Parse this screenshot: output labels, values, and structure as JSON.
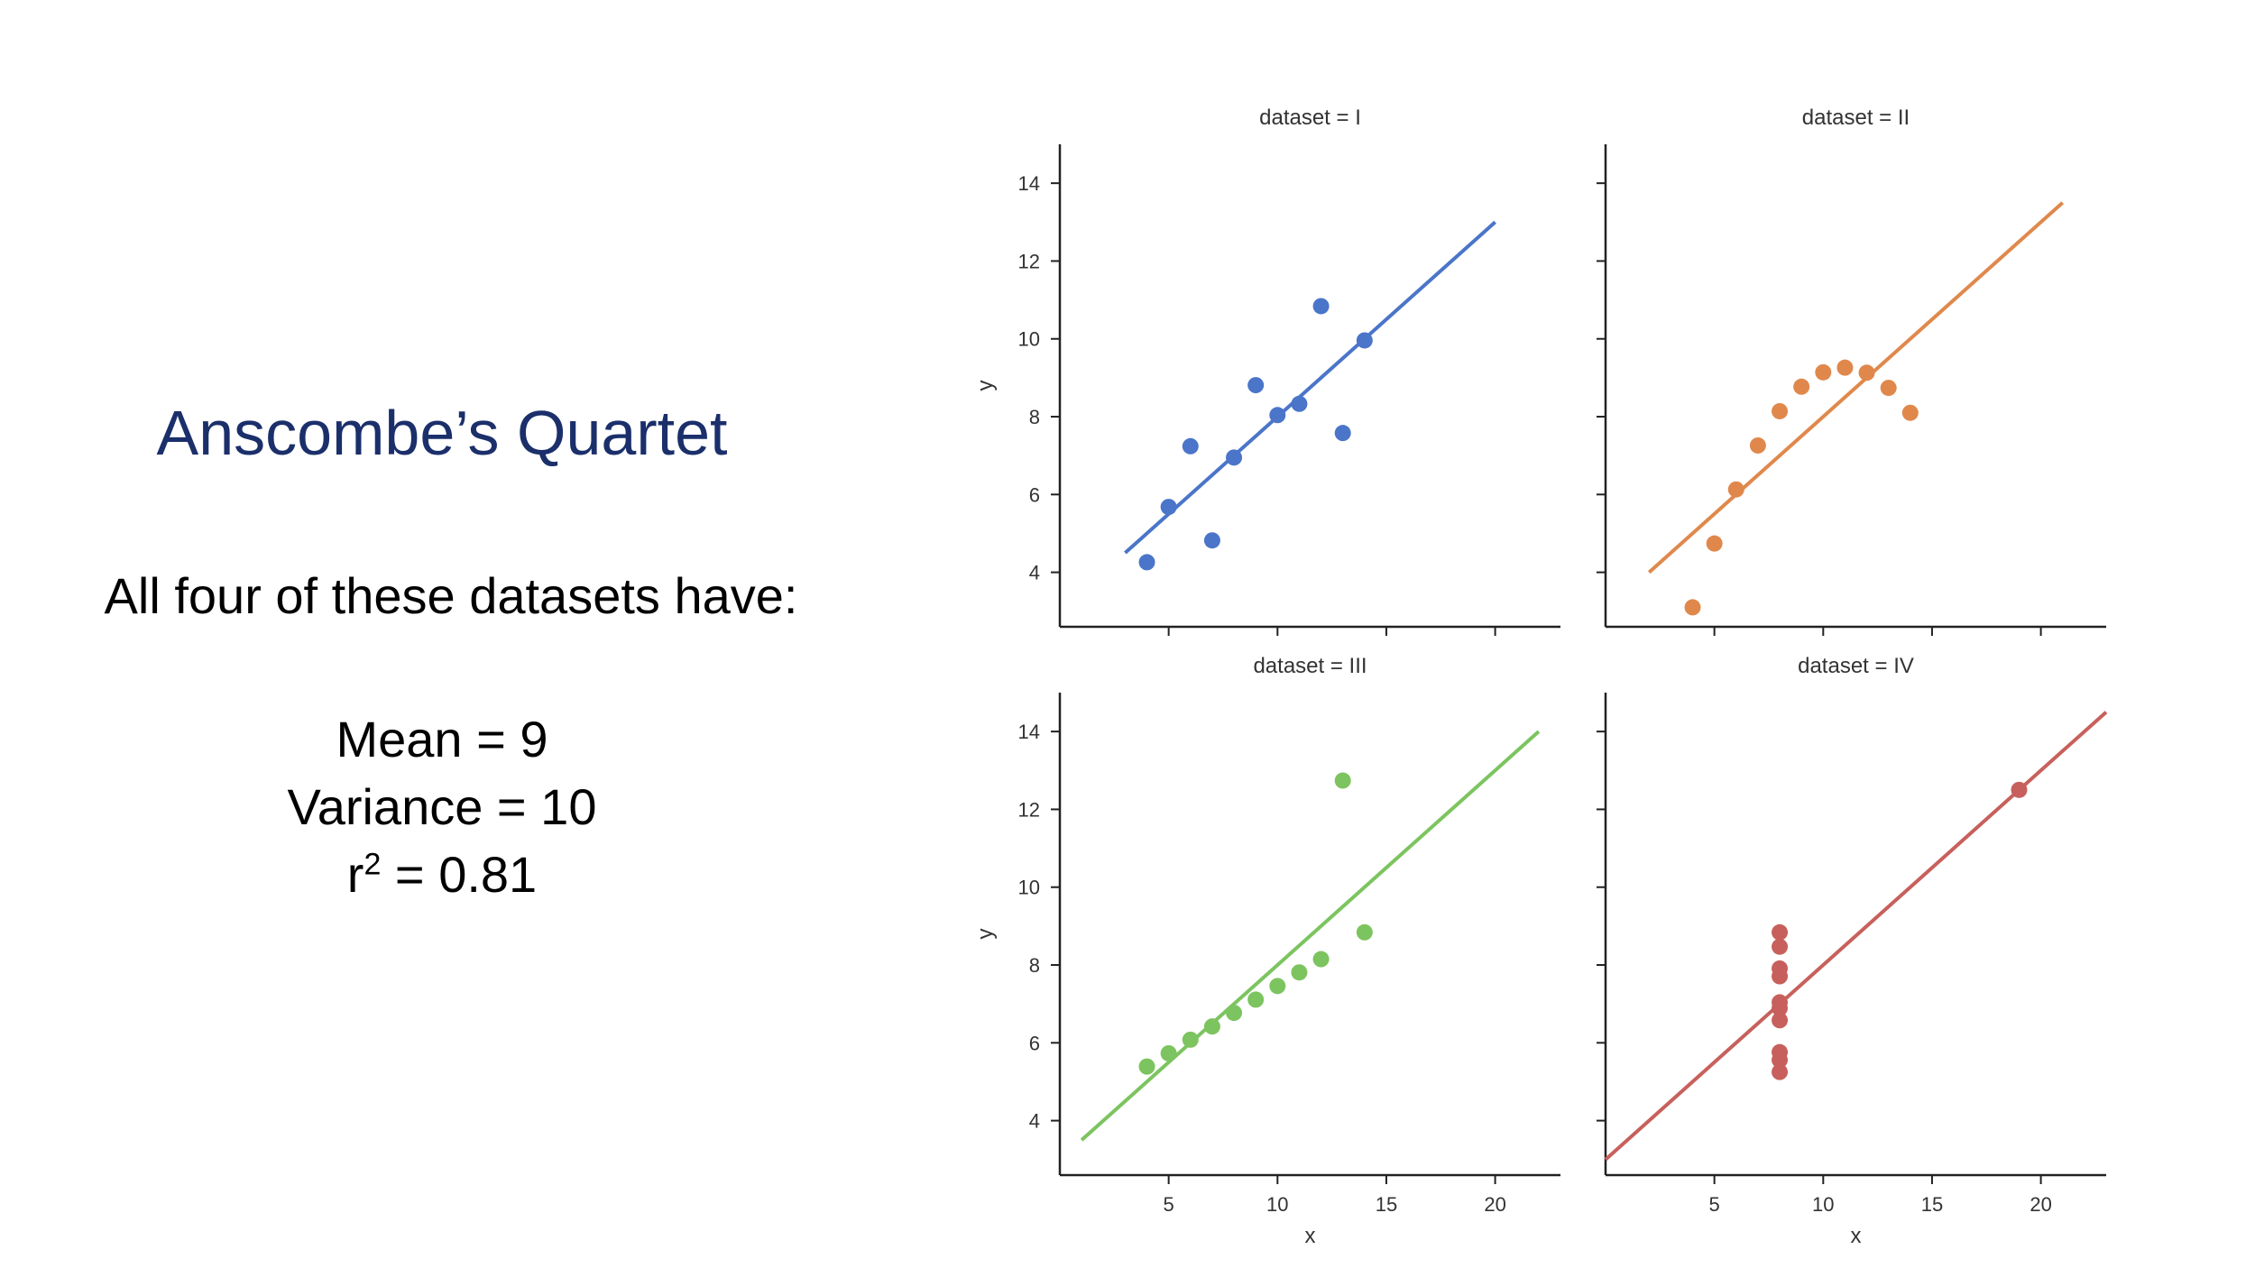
{
  "slide": {
    "title": "Anscombe’s Quartet",
    "subtitle": "All four of these datasets have:",
    "mean": "Mean = 9",
    "variance": "Variance = 10",
    "r2_prefix": "r",
    "r2_exp": "2",
    "r2_suffix": " = 0.81"
  },
  "colors": {
    "I": "#4a75c9",
    "II": "#e0884c",
    "III": "#7cc45f",
    "IV": "#c7605c",
    "axis": "#222222",
    "text": "#333333"
  },
  "chart_data": [
    {
      "type": "scatter",
      "title": "dataset = I",
      "xlabel": "",
      "ylabel": "y",
      "xlim": [
        0,
        23
      ],
      "ylim": [
        2.6,
        15
      ],
      "xticks": [
        5,
        10,
        15,
        20
      ],
      "xtick_labels_shown": false,
      "yticks": [
        4,
        6,
        8,
        10,
        12,
        14
      ],
      "ytick_labels_shown": true,
      "regression_line": {
        "x": [
          3,
          20
        ],
        "y": [
          4.5,
          13.0
        ]
      },
      "series": [
        {
          "x": [
            10,
            8,
            13,
            9,
            11,
            14,
            6,
            4,
            12,
            7,
            5
          ],
          "y": [
            8.04,
            6.95,
            7.58,
            8.81,
            8.33,
            9.96,
            7.24,
            4.26,
            10.84,
            4.82,
            5.68
          ]
        }
      ]
    },
    {
      "type": "scatter",
      "title": "dataset = II",
      "xlabel": "",
      "ylabel": "",
      "xlim": [
        0,
        23
      ],
      "ylim": [
        2.6,
        15
      ],
      "xticks": [
        5,
        10,
        15,
        20
      ],
      "xtick_labels_shown": false,
      "yticks": [
        4,
        6,
        8,
        10,
        12,
        14
      ],
      "ytick_labels_shown": false,
      "regression_line": {
        "x": [
          2,
          21
        ],
        "y": [
          4.0,
          13.5
        ]
      },
      "series": [
        {
          "x": [
            10,
            8,
            13,
            9,
            11,
            14,
            6,
            4,
            12,
            7,
            5
          ],
          "y": [
            9.14,
            8.14,
            8.74,
            8.77,
            9.26,
            8.1,
            6.13,
            3.1,
            9.13,
            7.26,
            4.74
          ]
        }
      ]
    },
    {
      "type": "scatter",
      "title": "dataset = III",
      "xlabel": "",
      "ylabel": "y",
      "xlim": [
        0,
        23
      ],
      "ylim": [
        2.6,
        15
      ],
      "xticks": [
        5,
        10,
        15,
        20
      ],
      "xtick_labels_shown": true,
      "yticks": [
        4,
        6,
        8,
        10,
        12,
        14
      ],
      "ytick_labels_shown": true,
      "regression_line": {
        "x": [
          1,
          22
        ],
        "y": [
          3.5,
          14.0
        ]
      },
      "series": [
        {
          "x": [
            10,
            8,
            13,
            9,
            11,
            14,
            6,
            4,
            12,
            7,
            5
          ],
          "y": [
            7.46,
            6.77,
            12.74,
            7.11,
            7.81,
            8.84,
            6.08,
            5.39,
            8.15,
            6.42,
            5.73
          ]
        }
      ]
    },
    {
      "type": "scatter",
      "title": "dataset = IV",
      "xlabel": "x",
      "ylabel": "",
      "xlim": [
        0,
        23
      ],
      "ylim": [
        2.6,
        15
      ],
      "xticks": [
        5,
        10,
        15,
        20
      ],
      "xtick_labels_shown": true,
      "yticks": [
        4,
        6,
        8,
        10,
        12,
        14
      ],
      "ytick_labels_shown": false,
      "regression_line": {
        "x": [
          0,
          23
        ],
        "y": [
          3.0,
          14.5
        ]
      },
      "series": [
        {
          "x": [
            8,
            8,
            8,
            8,
            8,
            8,
            8,
            19,
            8,
            8,
            8
          ],
          "y": [
            6.58,
            5.76,
            7.71,
            8.84,
            8.47,
            7.04,
            5.25,
            12.5,
            5.56,
            7.91,
            6.89
          ]
        }
      ]
    }
  ],
  "x_axis_label_left": "x"
}
